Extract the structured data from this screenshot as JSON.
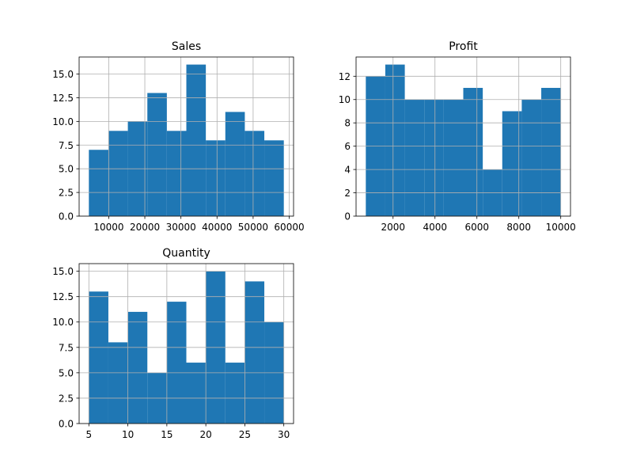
{
  "chart_data": [
    {
      "type": "histogram",
      "title": "Sales",
      "bin_edges": [
        4500,
        9900,
        15300,
        20700,
        26100,
        31500,
        36900,
        42300,
        47700,
        53100,
        58500
      ],
      "values": [
        7,
        9,
        10,
        13,
        9,
        16,
        8,
        11,
        9,
        8
      ],
      "xlim": [
        1800,
        61200
      ],
      "ylim": [
        0,
        16.8
      ],
      "xticks": [
        10000,
        20000,
        30000,
        40000,
        50000,
        60000
      ],
      "xtick_labels": [
        "10000",
        "20000",
        "30000",
        "40000",
        "50000",
        "60000"
      ],
      "yticks": [
        0,
        2.5,
        5,
        7.5,
        10,
        12.5,
        15
      ],
      "ytick_labels": [
        "0.0",
        "2.5",
        "5.0",
        "7.5",
        "10.0",
        "12.5",
        "15.0"
      ],
      "grid": true,
      "color": "#1f77b4"
    },
    {
      "type": "histogram",
      "title": "Profit",
      "bin_edges": [
        700,
        1630,
        2560,
        3490,
        4420,
        5350,
        6280,
        7210,
        8140,
        9070,
        10000
      ],
      "values": [
        12,
        13,
        10,
        10,
        10,
        11,
        4,
        9,
        10,
        11
      ],
      "xlim": [
        235,
        10465
      ],
      "ylim": [
        0,
        13.65
      ],
      "xticks": [
        2000,
        4000,
        6000,
        8000,
        10000
      ],
      "xtick_labels": [
        "2000",
        "4000",
        "6000",
        "8000",
        "10000"
      ],
      "yticks": [
        0,
        2,
        4,
        6,
        8,
        10,
        12
      ],
      "ytick_labels": [
        "0",
        "2",
        "4",
        "6",
        "8",
        "10",
        "12"
      ],
      "grid": true,
      "color": "#1f77b4"
    },
    {
      "type": "histogram",
      "title": "Quantity",
      "bin_edges": [
        5,
        7.5,
        10,
        12.5,
        15,
        17.5,
        20,
        22.5,
        25,
        27.5,
        30
      ],
      "values": [
        13,
        8,
        11,
        5,
        12,
        6,
        15,
        6,
        14,
        10
      ],
      "xlim": [
        3.75,
        31.25
      ],
      "ylim": [
        0,
        15.75
      ],
      "xticks": [
        5,
        10,
        15,
        20,
        25,
        30
      ],
      "xtick_labels": [
        "5",
        "10",
        "15",
        "20",
        "25",
        "30"
      ],
      "yticks": [
        0,
        2.5,
        5,
        7.5,
        10,
        12.5,
        15
      ],
      "ytick_labels": [
        "0.0",
        "2.5",
        "5.0",
        "7.5",
        "10.0",
        "12.5",
        "15.0"
      ],
      "grid": true,
      "color": "#1f77b4"
    }
  ]
}
